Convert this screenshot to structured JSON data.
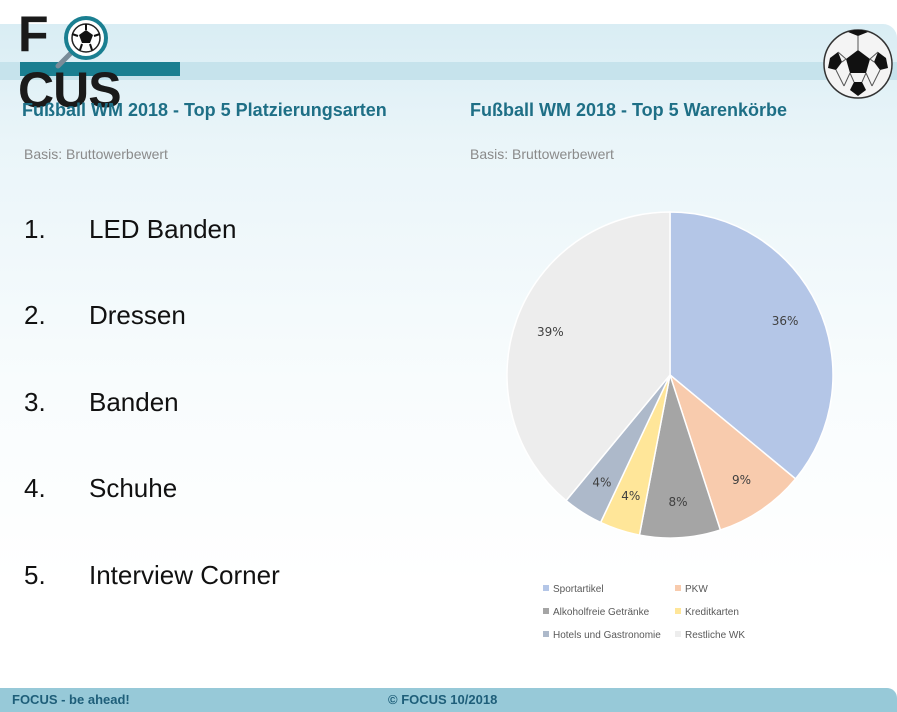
{
  "logo": {
    "text_left": "F",
    "text_right": "CUS"
  },
  "left_panel": {
    "title": "Fußball WM 2018 - Top 5 Platzierungsarten",
    "basis": "Basis: Bruttowerbewert",
    "ranking": [
      {
        "num": "1.",
        "label": "LED Banden"
      },
      {
        "num": "2.",
        "label": "Dressen"
      },
      {
        "num": "3.",
        "label": "Banden"
      },
      {
        "num": "4.",
        "label": "Schuhe"
      },
      {
        "num": "5.",
        "label": "Interview Corner"
      }
    ]
  },
  "right_panel": {
    "title": "Fußball WM 2018 - Top 5 Warenkörbe",
    "basis": "Basis: Bruttowerbewert"
  },
  "chart_data": {
    "type": "pie",
    "title": "Fußball WM 2018 - Top 5 Warenkörbe",
    "subtitle": "Basis: Bruttowerbewert",
    "categories": [
      "Sportartikel",
      "PKW",
      "Alkoholfreie Getränke",
      "Kreditkarten",
      "Hotels und Gastronomie",
      "Restliche WK"
    ],
    "values": [
      36,
      9,
      8,
      4,
      4,
      39
    ],
    "labels": [
      "36%",
      "9%",
      "8%",
      "4%",
      "4%",
      "39%"
    ],
    "colors": [
      "#b4c6e7",
      "#f8cbad",
      "#a5a5a5",
      "#ffe699",
      "#adb9ca",
      "#ededed"
    ],
    "legend_position": "bottom"
  },
  "footer": {
    "left": "FOCUS - be ahead!",
    "center": "© FOCUS 10/2018"
  }
}
